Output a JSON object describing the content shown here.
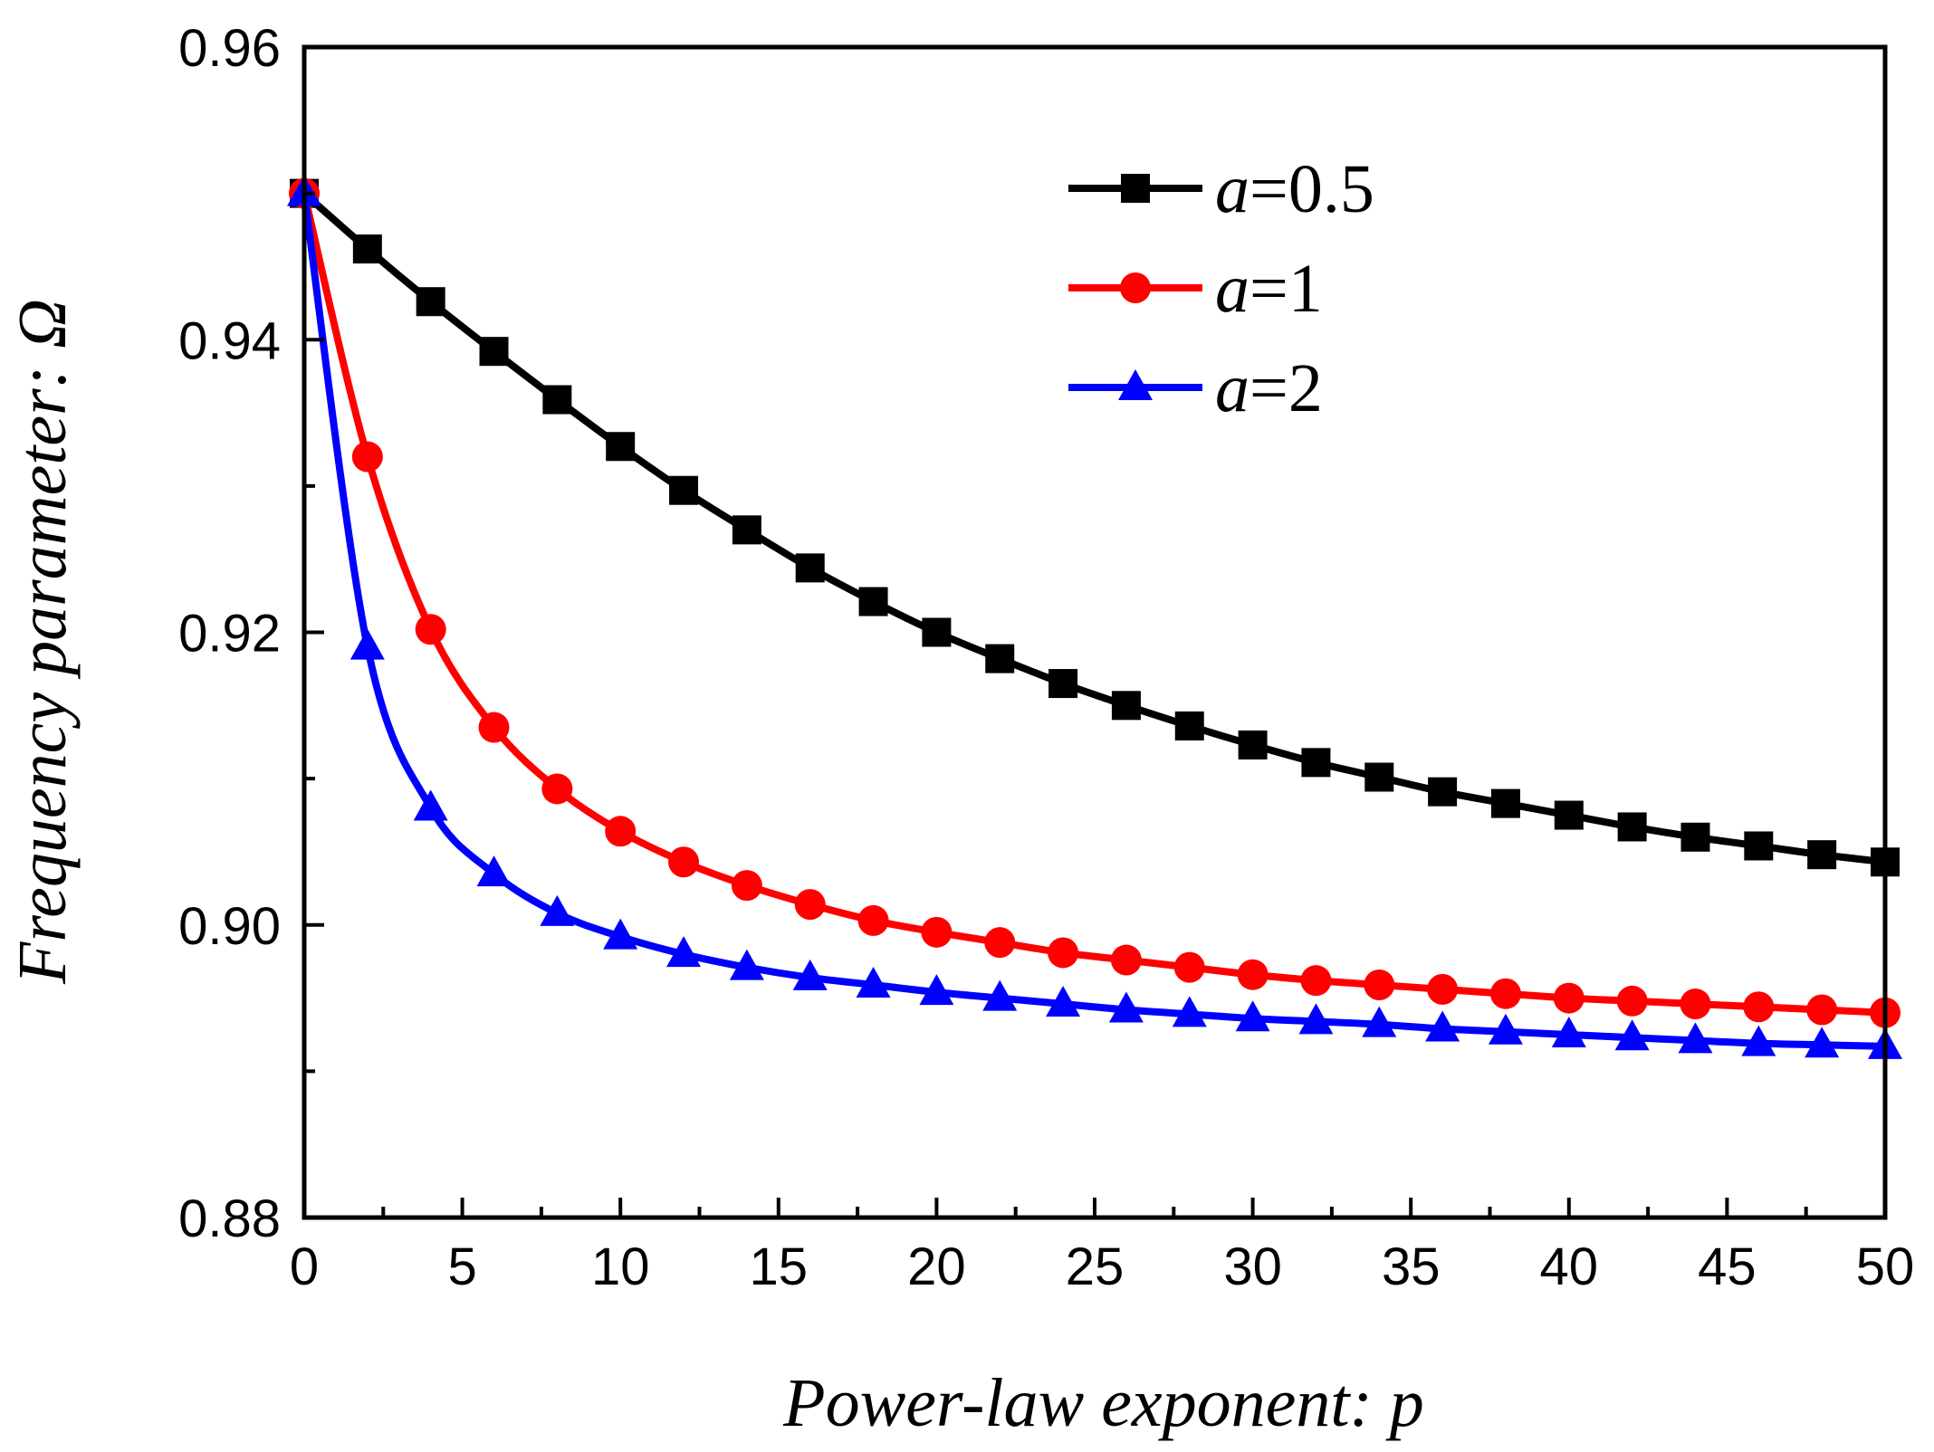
{
  "chart_data": {
    "type": "line",
    "xlabel": "Power-law exponent: p",
    "ylabel": "Frequency parameter: Ω",
    "xlim": [
      0,
      50
    ],
    "ylim": [
      0.88,
      0.96
    ],
    "xticks": [
      "0",
      "5",
      "10",
      "15",
      "20",
      "25",
      "30",
      "35",
      "40",
      "45",
      "50"
    ],
    "yticks": [
      "0.88",
      "0.90",
      "0.92",
      "0.94",
      "0.96"
    ],
    "legend_position": "top-right",
    "x": [
      0,
      2,
      4,
      6,
      8,
      10,
      12,
      14,
      16,
      18,
      20,
      22,
      24,
      26,
      28,
      30,
      32,
      34,
      36,
      38,
      40,
      42,
      44,
      46,
      48,
      50
    ],
    "series": [
      {
        "name": "a=0.5",
        "legend_var": "a",
        "legend_rest": "=0.5",
        "color": "#000000",
        "marker": "square",
        "values": [
          0.95,
          0.9462,
          0.9426,
          0.9392,
          0.9359,
          0.9327,
          0.9297,
          0.927,
          0.9244,
          0.9221,
          0.92,
          0.9182,
          0.9165,
          0.915,
          0.9136,
          0.9123,
          0.9111,
          0.9101,
          0.9091,
          0.9083,
          0.9075,
          0.9067,
          0.906,
          0.9054,
          0.9048,
          0.9043
        ]
      },
      {
        "name": "a=1",
        "legend_var": "a",
        "legend_rest": "=1",
        "color": "#ff0000",
        "marker": "circle",
        "values": [
          0.95,
          0.932,
          0.9202,
          0.9135,
          0.9093,
          0.9064,
          0.9043,
          0.9027,
          0.9014,
          0.9003,
          0.8995,
          0.8988,
          0.8981,
          0.8976,
          0.8971,
          0.8966,
          0.8962,
          0.8959,
          0.8956,
          0.8953,
          0.895,
          0.8948,
          0.8946,
          0.8944,
          0.8942,
          0.894
        ]
      },
      {
        "name": "a=2",
        "legend_var": "a",
        "legend_rest": "=2",
        "color": "#0000ff",
        "marker": "triangle",
        "values": [
          0.95,
          0.919,
          0.908,
          0.9035,
          0.9008,
          0.8992,
          0.898,
          0.8971,
          0.8964,
          0.8959,
          0.8954,
          0.895,
          0.8946,
          0.8942,
          0.8939,
          0.8936,
          0.8934,
          0.8932,
          0.8929,
          0.8927,
          0.8925,
          0.8923,
          0.8921,
          0.8919,
          0.8918,
          0.8917
        ]
      }
    ]
  }
}
